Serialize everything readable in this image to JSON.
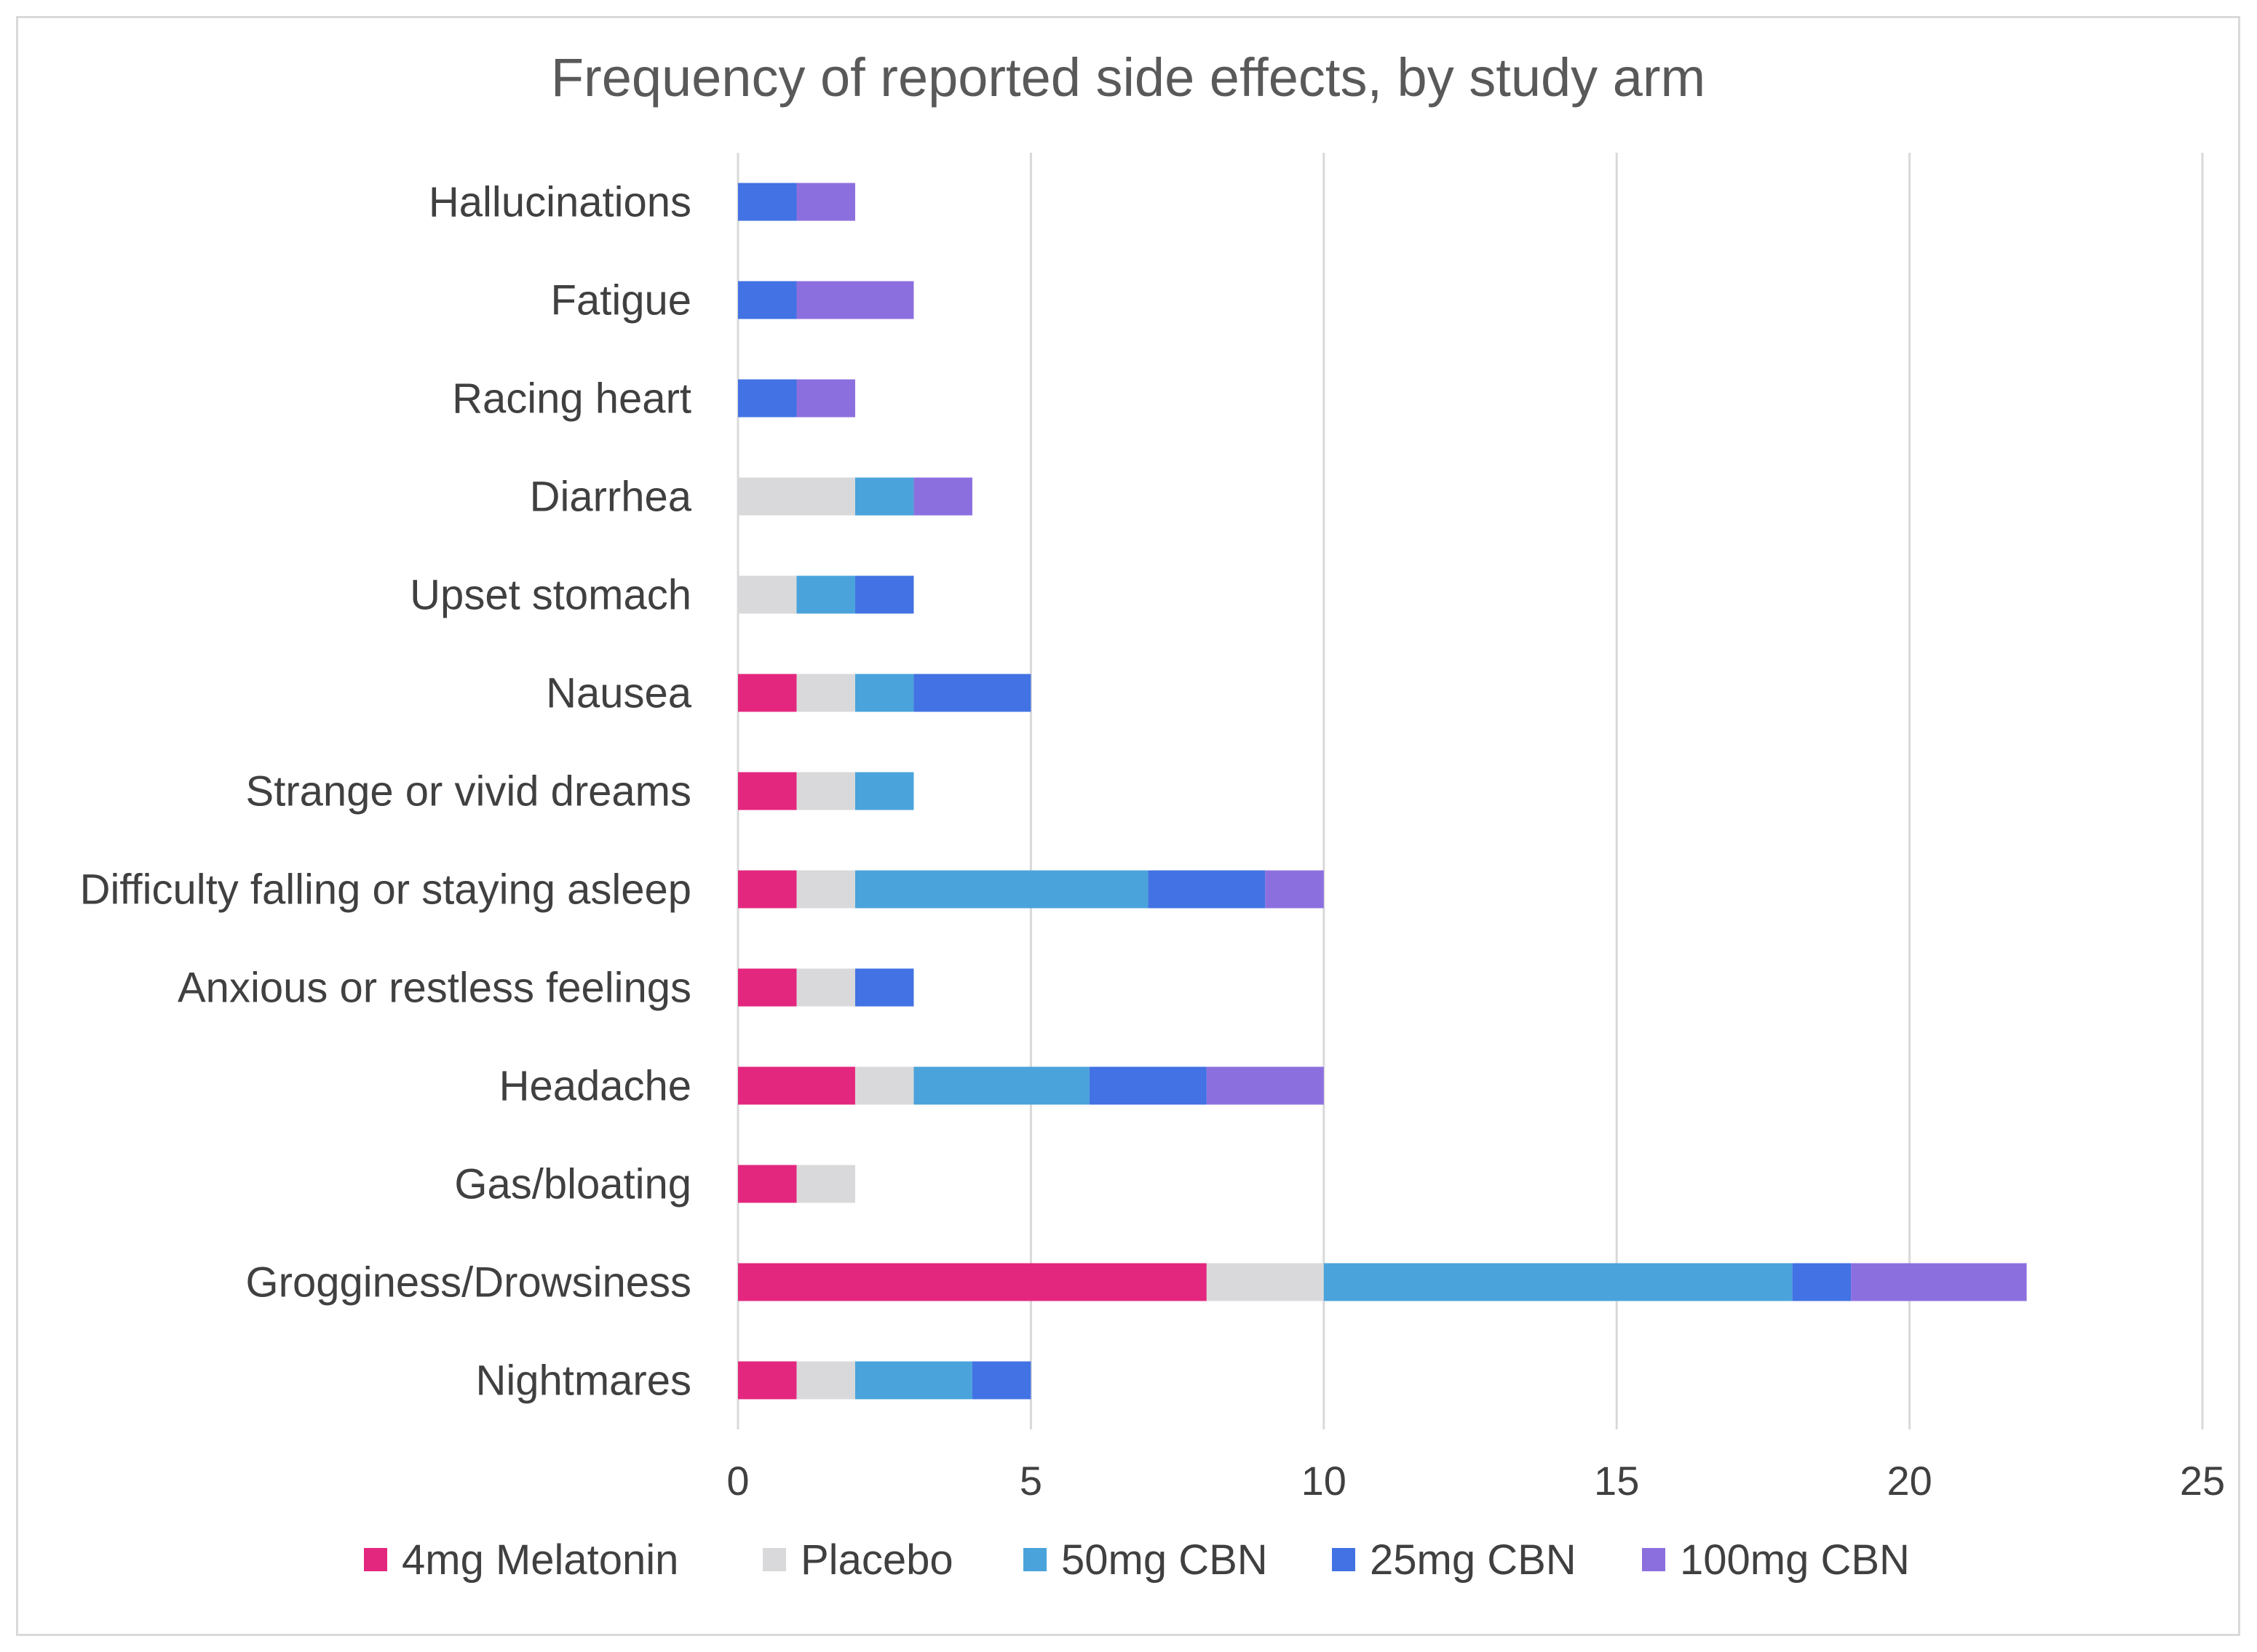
{
  "chart_data": {
    "type": "bar",
    "orientation": "horizontal",
    "stacked": true,
    "title": "Frequency of reported side effects, by study arm",
    "xlabel": "",
    "ylabel": "",
    "xlim": [
      0,
      25
    ],
    "xticks": [
      0,
      5,
      10,
      15,
      20,
      25
    ],
    "grid": true,
    "legend_position": "bottom",
    "categories": [
      "Hallucinations",
      "Fatigue",
      "Racing heart",
      "Diarrhea",
      "Upset stomach",
      "Nausea",
      "Strange or vivid dreams",
      "Difficulty falling or staying asleep",
      "Anxious or restless feelings",
      "Headache",
      "Gas/bloating",
      "Grogginess/Drowsiness",
      "Nightmares"
    ],
    "series": [
      {
        "name": "4mg Melatonin",
        "color": "#e4277e",
        "values": [
          0,
          0,
          0,
          0,
          0,
          1,
          1,
          1,
          1,
          2,
          1,
          8,
          1
        ]
      },
      {
        "name": "Placebo",
        "color": "#d9d9db",
        "values": [
          0,
          0,
          0,
          2,
          1,
          1,
          1,
          1,
          1,
          1,
          1,
          2,
          1
        ]
      },
      {
        "name": "50mg CBN",
        "color": "#4aa3db",
        "values": [
          0,
          0,
          0,
          1,
          1,
          1,
          1,
          5,
          0,
          3,
          0,
          8,
          2
        ]
      },
      {
        "name": "25mg CBN",
        "color": "#4272e3",
        "values": [
          1,
          1,
          1,
          0,
          1,
          2,
          0,
          2,
          1,
          2,
          0,
          1,
          1
        ]
      },
      {
        "name": "100mg CBN",
        "color": "#8c6fde",
        "values": [
          1,
          2,
          1,
          1,
          0,
          0,
          0,
          1,
          0,
          2,
          0,
          3,
          0
        ]
      }
    ]
  }
}
